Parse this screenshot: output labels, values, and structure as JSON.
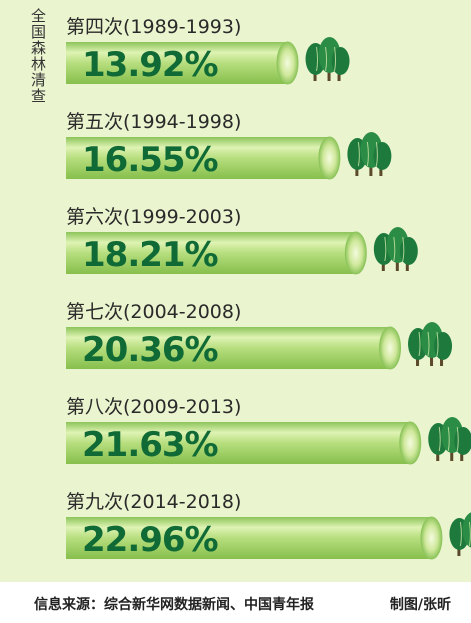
{
  "chart_data": {
    "type": "bar",
    "title": "全国森林清查",
    "categories": [
      "第四次(1989-1993)",
      "第五次(1994-1998)",
      "第六次(1999-2003)",
      "第七次(2004-2008)",
      "第八次(2009-2013)",
      "第九次(2014-2018)"
    ],
    "values": [
      13.92,
      16.55,
      18.21,
      20.36,
      21.63,
      22.96
    ],
    "value_labels": [
      "13.92%",
      "16.55%",
      "18.21%",
      "20.36%",
      "21.63%",
      "22.96%"
    ],
    "xlim": [
      0,
      23.5
    ],
    "colors": {
      "background": "#eaf4cf",
      "bar": "#a9d46f",
      "bar_highlight": "#e8f6c6",
      "bar_cap": "#c6e48f",
      "value_text": "#0f6a36",
      "tree": "#1d7a3c"
    }
  },
  "footer": {
    "source": "信息来源：综合新华网数据新闻、中国青年报",
    "credit": "制图/张昕"
  }
}
